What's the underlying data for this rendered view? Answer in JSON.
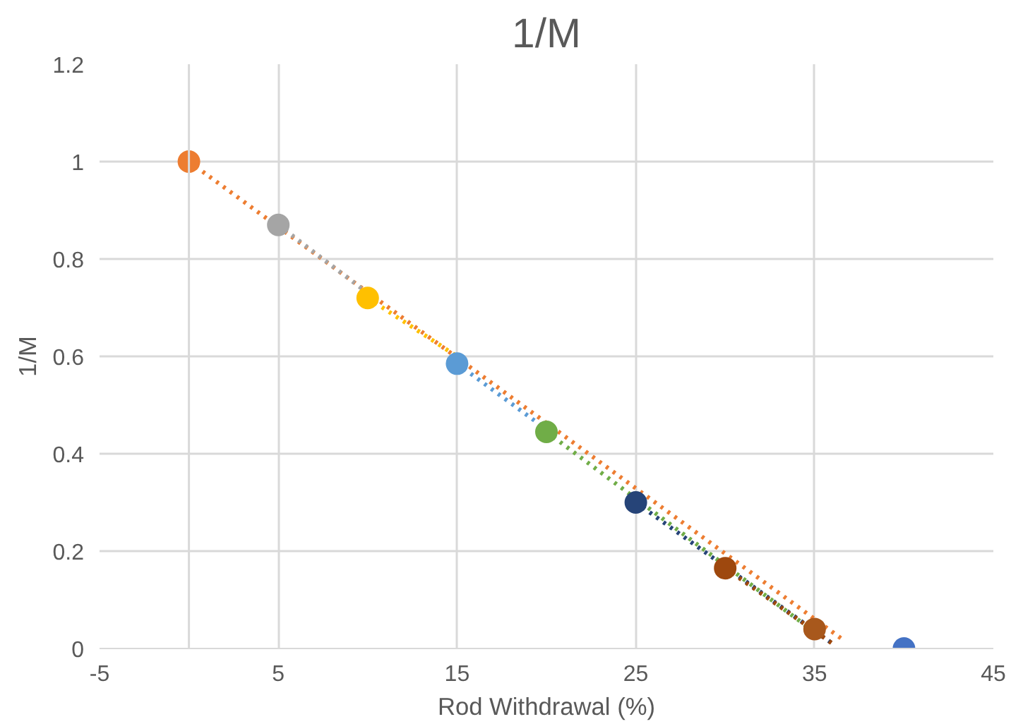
{
  "chart_data": {
    "type": "scatter",
    "title": "1/M",
    "xlabel": "Rod Withdrawal (%)",
    "ylabel": "1/M",
    "xlim": [
      -5,
      45
    ],
    "xticks": [
      -5,
      5,
      15,
      25,
      35,
      45
    ],
    "ylim": [
      0,
      1.2
    ],
    "yticks": [
      0,
      0.2,
      0.4,
      0.6,
      0.8,
      1,
      1.2
    ],
    "grid": true,
    "marker": "circle",
    "series": [
      {
        "type": "line",
        "line_style": "dotted",
        "marker": "none",
        "color": "#ed7d31",
        "x": [
          0,
          36.7
        ],
        "values": [
          1,
          0.015
        ]
      },
      {
        "type": "line",
        "line_style": "dotted",
        "marker": "none",
        "color": "#a5a5a5",
        "x": [
          5,
          10
        ],
        "values": [
          0.87,
          0.73
        ]
      },
      {
        "type": "line",
        "line_style": "dotted",
        "marker": "none",
        "color": "#ffc000",
        "x": [
          10,
          15
        ],
        "values": [
          0.72,
          0.6
        ]
      },
      {
        "type": "line",
        "line_style": "dotted",
        "marker": "none",
        "color": "#5b9bd5",
        "x": [
          15,
          20
        ],
        "values": [
          0.585,
          0.45
        ]
      },
      {
        "type": "line",
        "line_style": "dotted",
        "marker": "none",
        "color": "#70ad47",
        "x": [
          20,
          35.5
        ],
        "values": [
          0.445,
          0.02
        ]
      },
      {
        "type": "line",
        "line_style": "dotted",
        "marker": "none",
        "color": "#264478",
        "x": [
          25,
          36
        ],
        "values": [
          0.3,
          0.01
        ]
      },
      {
        "type": "line",
        "line_style": "dotted",
        "marker": "none",
        "color": "#9e480e",
        "x": [
          30,
          36
        ],
        "values": [
          0.165,
          0.01
        ]
      },
      {
        "color": "#ed7d31",
        "x": [
          0
        ],
        "values": [
          1
        ]
      },
      {
        "color": "#a5a5a5",
        "x": [
          5
        ],
        "values": [
          0.87
        ]
      },
      {
        "color": "#ffc000",
        "x": [
          10
        ],
        "values": [
          0.72
        ]
      },
      {
        "color": "#5b9bd5",
        "x": [
          15
        ],
        "values": [
          0.585
        ]
      },
      {
        "color": "#70ad47",
        "x": [
          20
        ],
        "values": [
          0.445
        ]
      },
      {
        "color": "#264478",
        "x": [
          25
        ],
        "values": [
          0.3
        ]
      },
      {
        "color": "#9e480e",
        "x": [
          30
        ],
        "values": [
          0.165
        ]
      },
      {
        "color": "#a8581c",
        "x": [
          35
        ],
        "values": [
          0.04
        ]
      },
      {
        "color": "#4472c4",
        "x": [
          40
        ],
        "values": [
          0
        ]
      }
    ]
  }
}
